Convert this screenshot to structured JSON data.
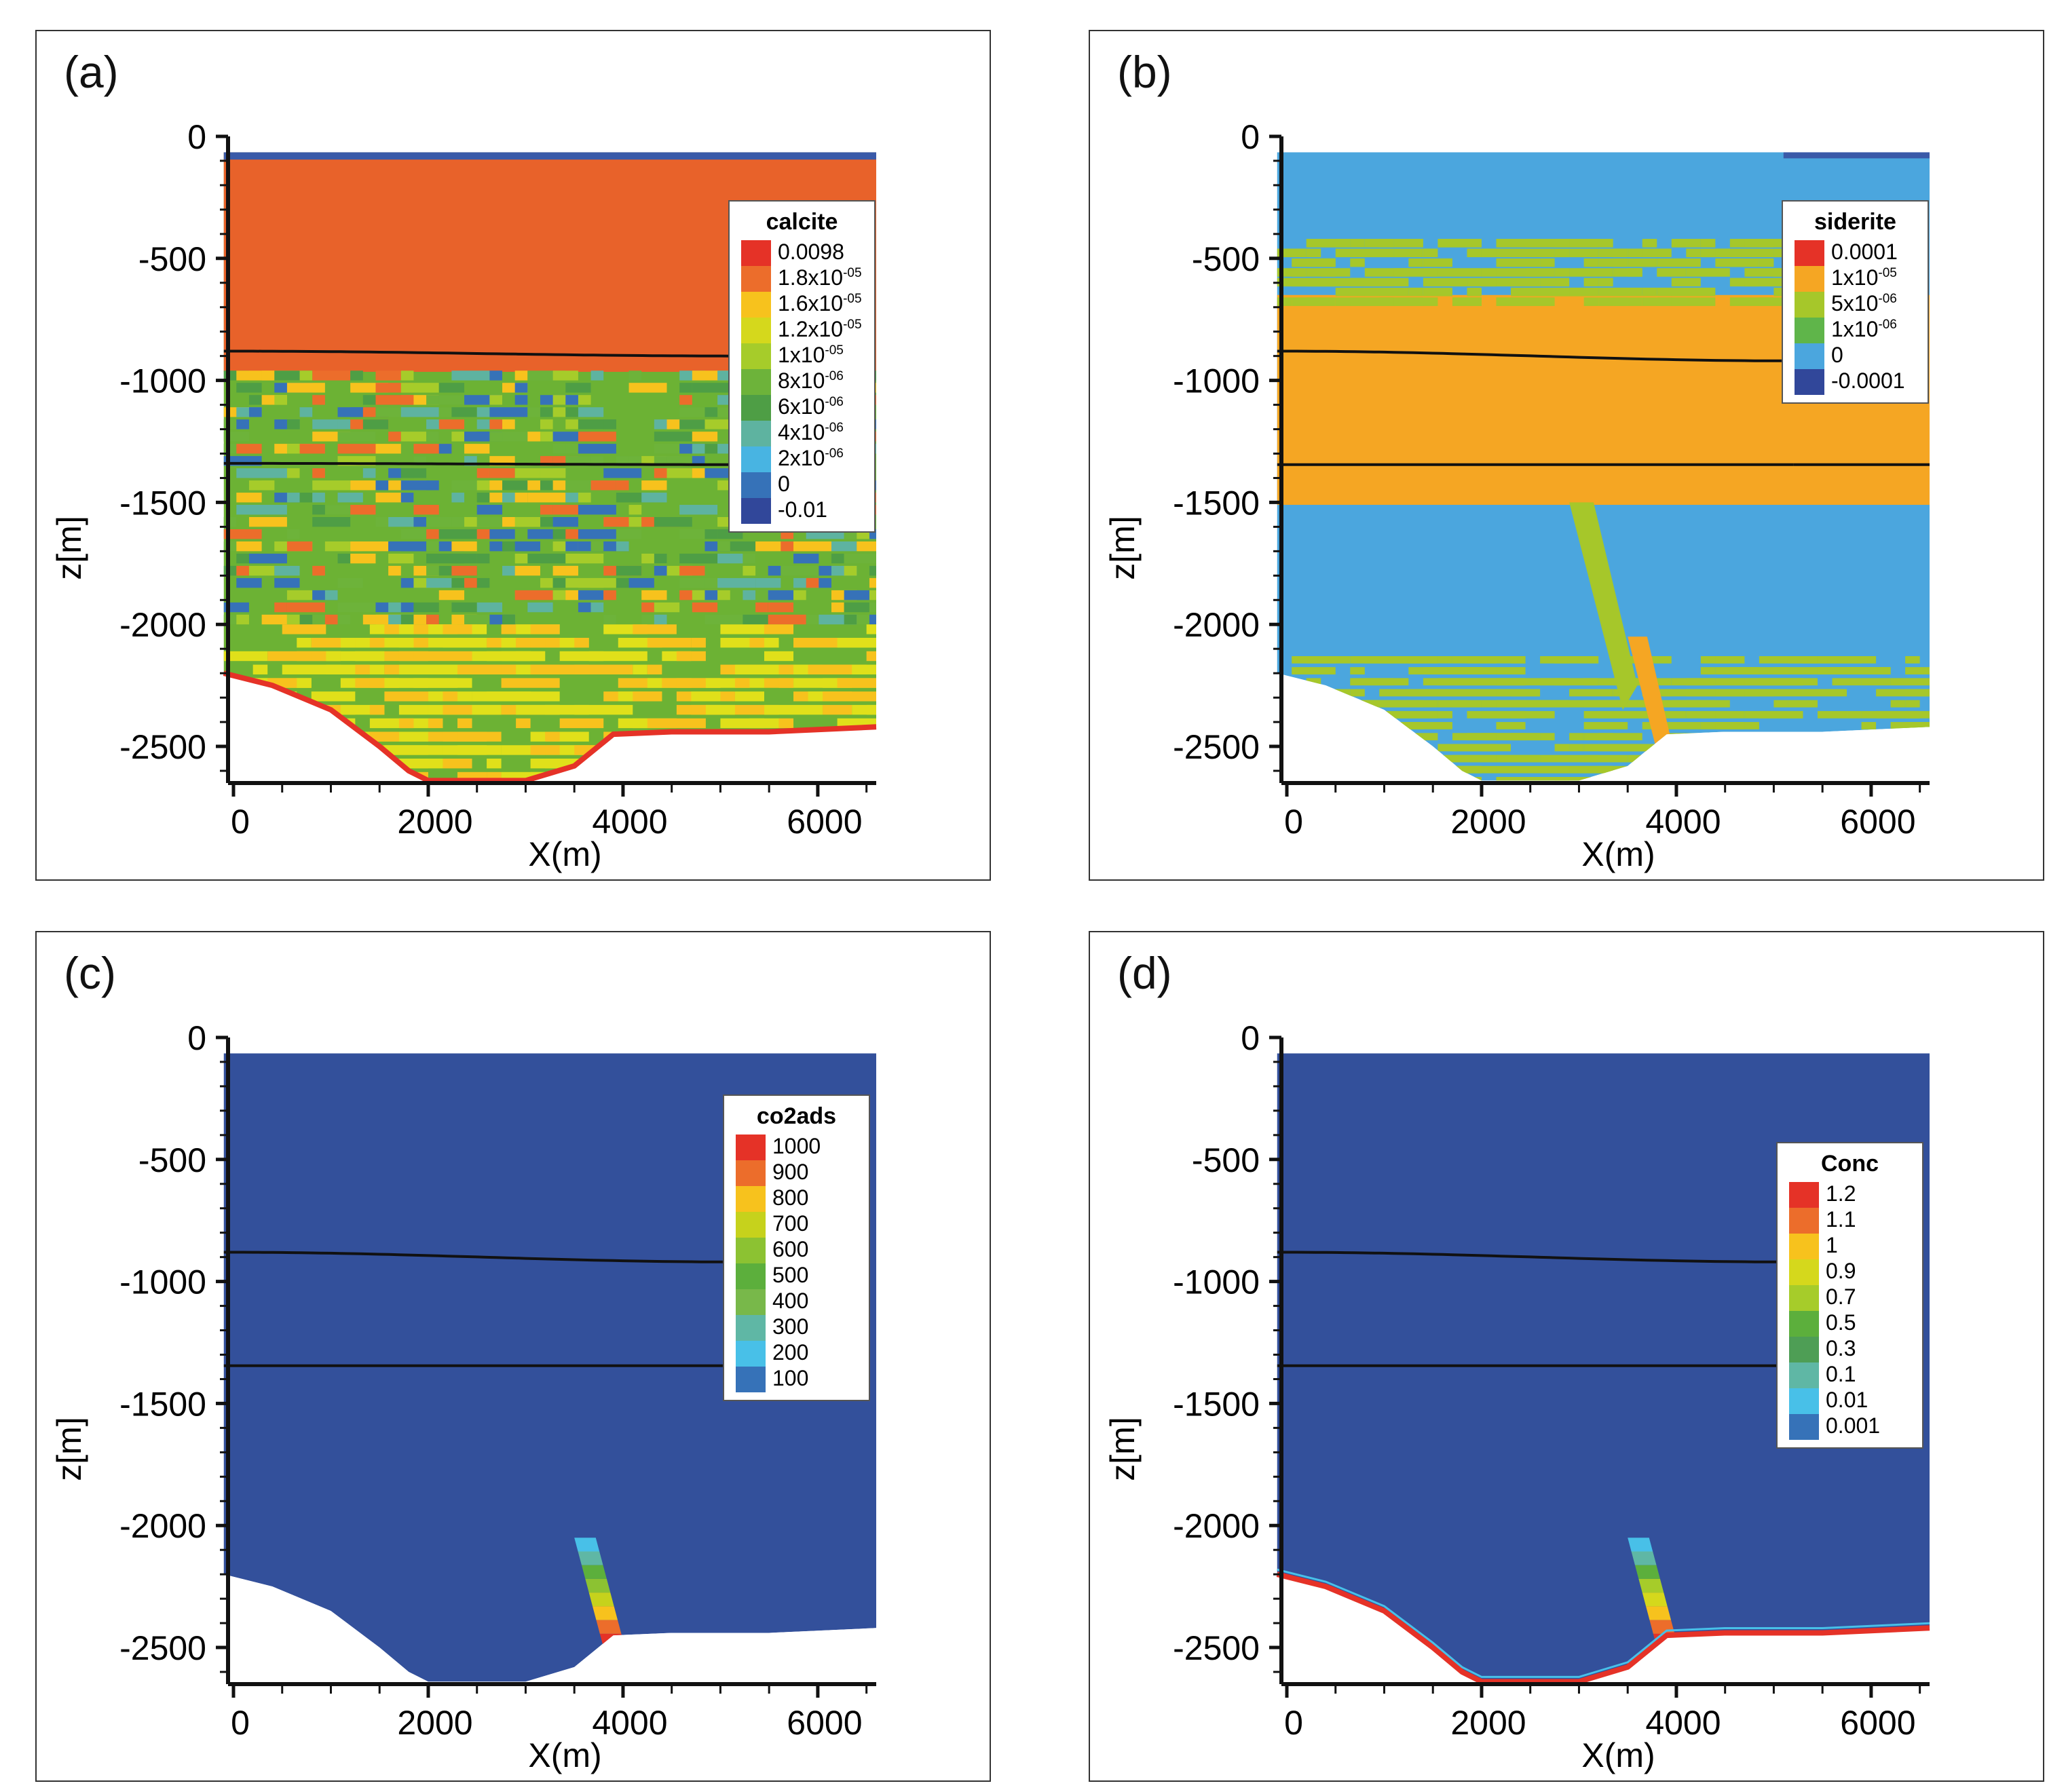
{
  "panels": [
    {
      "label": "(a)",
      "plot_colors": {
        "base": "#e8622a",
        "lower": "#6cb234",
        "top_strip": "#3a5aa8",
        "deep": "#e0e01a"
      },
      "chart_data": {
        "type": "heatmap",
        "variable": "calcite",
        "xlabel": "X(m)",
        "ylabel": "z[m]",
        "xlim": [
          0,
          6600
        ],
        "ylim": [
          -2650,
          0
        ],
        "xticks": [
          "0",
          "2000",
          "4000",
          "6000"
        ],
        "yticks": [
          "0",
          "-500",
          "-1000",
          "-1500",
          "-2000",
          "-2500"
        ],
        "legend_title": "calcite",
        "legend": [
          {
            "label": "0.0098",
            "exp": "",
            "color": "#e53227"
          },
          {
            "label": "1.8x10",
            "exp": "-05",
            "color": "#ec6d2b"
          },
          {
            "label": "1.6x10",
            "exp": "-05",
            "color": "#f7c21d"
          },
          {
            "label": "1.2x10",
            "exp": "-05",
            "color": "#d5d81c"
          },
          {
            "label": "1x10",
            "exp": "-05",
            "color": "#a6cc2a"
          },
          {
            "label": "8x10",
            "exp": "-06",
            "color": "#6db33a"
          },
          {
            "label": "6x10",
            "exp": "-06",
            "color": "#4e9e45"
          },
          {
            "label": "4x10",
            "exp": "-06",
            "color": "#5eb3a0"
          },
          {
            "label": "2x10",
            "exp": "-06",
            "color": "#48b4e2"
          },
          {
            "label": "0",
            "exp": "",
            "color": "#3672b8"
          },
          {
            "label": "-0.01",
            "exp": "",
            "color": "#31479a"
          }
        ]
      }
    },
    {
      "label": "(b)",
      "plot_colors": {
        "base": "#4ba6de",
        "band": "#f5a623",
        "speckle": "#a6c72a",
        "top_strip": "#3a5aa8"
      },
      "chart_data": {
        "type": "heatmap",
        "variable": "siderite",
        "xlabel": "X(m)",
        "ylabel": "z[m]",
        "xlim": [
          0,
          6600
        ],
        "ylim": [
          -2650,
          0
        ],
        "xticks": [
          "0",
          "2000",
          "4000",
          "6000"
        ],
        "yticks": [
          "0",
          "-500",
          "-1000",
          "-1500",
          "-2000",
          "-2500"
        ],
        "legend_title": "siderite",
        "legend": [
          {
            "label": "0.0001",
            "exp": "",
            "color": "#e53227"
          },
          {
            "label": "1x10",
            "exp": "-05",
            "color": "#f5a623"
          },
          {
            "label": "5x10",
            "exp": "-06",
            "color": "#a6c72a"
          },
          {
            "label": "1x10",
            "exp": "-06",
            "color": "#5fb54a"
          },
          {
            "label": "0",
            "exp": "",
            "color": "#4ba6de"
          },
          {
            "label": "-0.0001",
            "exp": "",
            "color": "#31479a"
          }
        ]
      }
    },
    {
      "label": "(c)",
      "plot_colors": {
        "base": "#33509b"
      },
      "chart_data": {
        "type": "heatmap",
        "variable": "co2ads",
        "xlabel": "X(m)",
        "ylabel": "z[m]",
        "xlim": [
          0,
          6600
        ],
        "ylim": [
          -2650,
          0
        ],
        "xticks": [
          "0",
          "2000",
          "4000",
          "6000"
        ],
        "yticks": [
          "0",
          "-500",
          "-1000",
          "-1500",
          "-2000",
          "-2500"
        ],
        "legend_title": "co2ads",
        "legend": [
          {
            "label": "1000",
            "exp": "",
            "color": "#e53227"
          },
          {
            "label": "900",
            "exp": "",
            "color": "#ec6d2b"
          },
          {
            "label": "800",
            "exp": "",
            "color": "#f7c21d"
          },
          {
            "label": "700",
            "exp": "",
            "color": "#c6d21c"
          },
          {
            "label": "600",
            "exp": "",
            "color": "#8cc232"
          },
          {
            "label": "500",
            "exp": "",
            "color": "#5caf3c"
          },
          {
            "label": "400",
            "exp": "",
            "color": "#78b84a"
          },
          {
            "label": "300",
            "exp": "",
            "color": "#5fb7a5"
          },
          {
            "label": "200",
            "exp": "",
            "color": "#48c0e8"
          },
          {
            "label": "100",
            "exp": "",
            "color": "#3672b8"
          }
        ]
      }
    },
    {
      "label": "(d)",
      "plot_colors": {
        "base": "#33509b"
      },
      "chart_data": {
        "type": "heatmap",
        "variable": "Conc",
        "xlabel": "X(m)",
        "ylabel": "z[m]",
        "xlim": [
          0,
          6600
        ],
        "ylim": [
          -2650,
          0
        ],
        "xticks": [
          "0",
          "2000",
          "4000",
          "6000"
        ],
        "yticks": [
          "0",
          "-500",
          "-1000",
          "-1500",
          "-2000",
          "-2500"
        ],
        "legend_title": "Conc",
        "legend": [
          {
            "label": "1.2",
            "exp": "",
            "color": "#e53227"
          },
          {
            "label": "1.1",
            "exp": "",
            "color": "#ec6d2b"
          },
          {
            "label": "1",
            "exp": "",
            "color": "#f7c21d"
          },
          {
            "label": "0.9",
            "exp": "",
            "color": "#d5d81c"
          },
          {
            "label": "0.7",
            "exp": "",
            "color": "#a6cc2a"
          },
          {
            "label": "0.5",
            "exp": "",
            "color": "#5caf3c"
          },
          {
            "label": "0.3",
            "exp": "",
            "color": "#4e9e55"
          },
          {
            "label": "0.1",
            "exp": "",
            "color": "#5fb7a5"
          },
          {
            "label": "0.01",
            "exp": "",
            "color": "#48c0e8"
          },
          {
            "label": "0.001",
            "exp": "",
            "color": "#3672b8"
          }
        ]
      }
    }
  ]
}
